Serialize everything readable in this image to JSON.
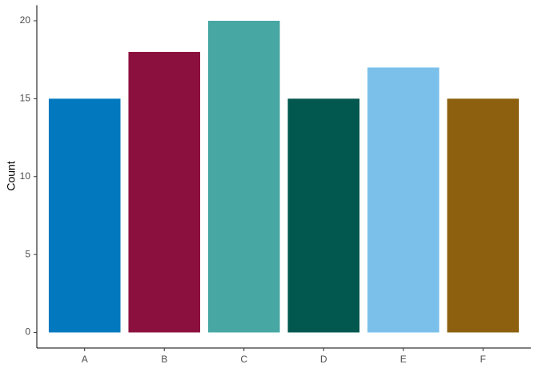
{
  "chart_data": {
    "type": "bar",
    "y_label": "Count",
    "categories": [
      "A",
      "B",
      "C",
      "D",
      "E",
      "F"
    ],
    "values": [
      15,
      18,
      20,
      15,
      17,
      15
    ],
    "colors": [
      "#0279be",
      "#8c103e",
      "#47a7a3",
      "#02574f",
      "#7ac0eb",
      "#8c600f"
    ],
    "ylim": [
      -1,
      21
    ],
    "yticks": [
      0,
      5,
      10,
      15,
      20
    ],
    "grid": false
  }
}
